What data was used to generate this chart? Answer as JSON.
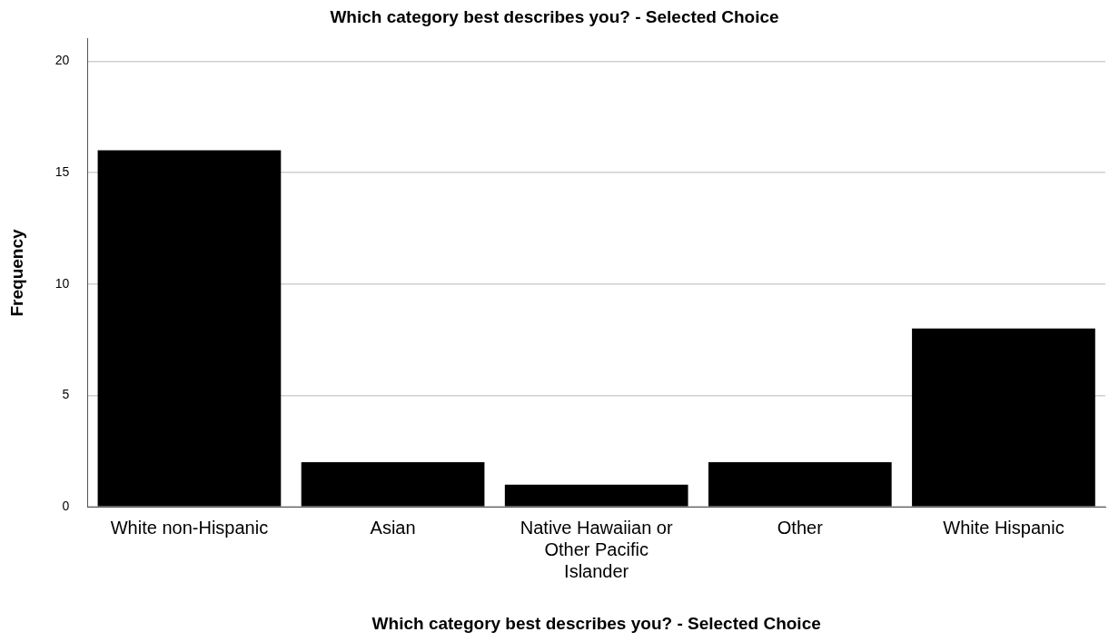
{
  "chart_data": {
    "type": "bar",
    "title": "Which category best describes you? - Selected Choice",
    "xlabel": "Which category best describes you? - Selected Choice",
    "ylabel": "Frequency",
    "categories": [
      "White non-Hispanic",
      "Asian",
      "Native Hawaiian or Other Pacific Islander",
      "Other",
      "White Hispanic"
    ],
    "values": [
      16,
      2,
      1,
      2,
      8
    ],
    "color": "#000000",
    "ylim": [
      0,
      21
    ],
    "yticks": [
      0,
      5,
      10,
      15,
      20
    ],
    "grid": "y",
    "legend": false
  }
}
